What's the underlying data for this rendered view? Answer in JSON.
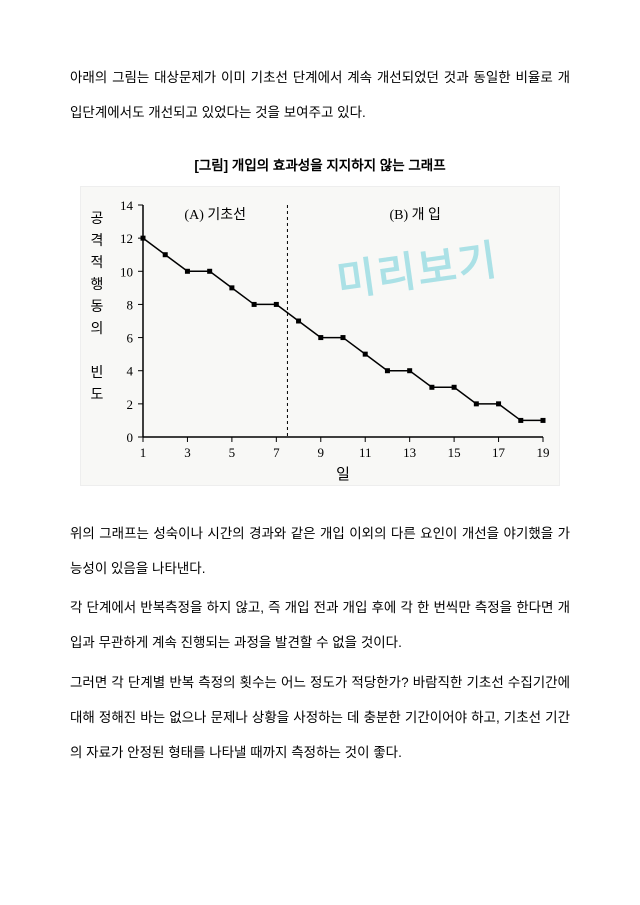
{
  "intro_paragraph": "아래의 그림는 대상문제가 이미 기초선 단계에서 계속 개선되었던 것과 동일한 비율로 개입단계에서도 개선되고 있었다는 것을 보여주고 있다.",
  "figure_title": "[그림] 개입의 효과성을 지지하지 않는 그래프",
  "watermark": "미리보기",
  "chart": {
    "type": "line",
    "phase_a_label": "(A) 기초선",
    "phase_b_label": "(B) 개 입",
    "y_label_chars": [
      "공",
      "격",
      "적",
      "행",
      "동",
      "의",
      "",
      "빈",
      "도"
    ],
    "x_label": "일",
    "ylim": [
      0,
      14
    ],
    "ytick_step": 2,
    "yticks": [
      0,
      2,
      4,
      6,
      8,
      10,
      12,
      14
    ],
    "xlim": [
      1,
      19
    ],
    "xtick_step": 2,
    "xticks": [
      1,
      3,
      5,
      7,
      9,
      11,
      13,
      15,
      17,
      19
    ],
    "divider_x": 7.5,
    "points": [
      {
        "x": 1,
        "y": 12
      },
      {
        "x": 2,
        "y": 11
      },
      {
        "x": 3,
        "y": 10
      },
      {
        "x": 4,
        "y": 10
      },
      {
        "x": 5,
        "y": 9
      },
      {
        "x": 6,
        "y": 8
      },
      {
        "x": 7,
        "y": 8
      },
      {
        "x": 8,
        "y": 7
      },
      {
        "x": 9,
        "y": 6
      },
      {
        "x": 10,
        "y": 6
      },
      {
        "x": 11,
        "y": 5
      },
      {
        "x": 12,
        "y": 4
      },
      {
        "x": 13,
        "y": 4
      },
      {
        "x": 14,
        "y": 3
      },
      {
        "x": 15,
        "y": 3
      },
      {
        "x": 16,
        "y": 2
      },
      {
        "x": 17,
        "y": 2
      },
      {
        "x": 18,
        "y": 1
      },
      {
        "x": 19,
        "y": 1
      }
    ],
    "line_color": "#000000",
    "marker_color": "#000000",
    "marker_size": 5,
    "line_width": 1.5,
    "axis_color": "#000000",
    "tick_font_size": 13,
    "label_font_size": 14,
    "phase_font_size": 14,
    "background_color": "#f8f8f6"
  },
  "body_paragraphs": [
    "위의 그래프는 성숙이나 시간의 경과와 같은 개입 이외의 다른 요인이 개선을 야기했을 가능성이 있음을 나타낸다.",
    "각 단계에서 반복측정을 하지 않고, 즉 개입 전과 개입 후에 각 한 번씩만 측정을 한다면 개입과 무관하게 계속 진행되는 과정을 발견할 수 없을 것이다.",
    "그러면 각 단계별 반복 측정의 횟수는 어느 정도가 적당한가? 바람직한 기초선 수집기간에 대해 정해진 바는 없으나 문제나 상황을 사정하는 데 충분한 기간이어야 하고, 기초선 기간의 자료가 안정된 형태를 나타낼 때까지 측정하는 것이 좋다."
  ]
}
